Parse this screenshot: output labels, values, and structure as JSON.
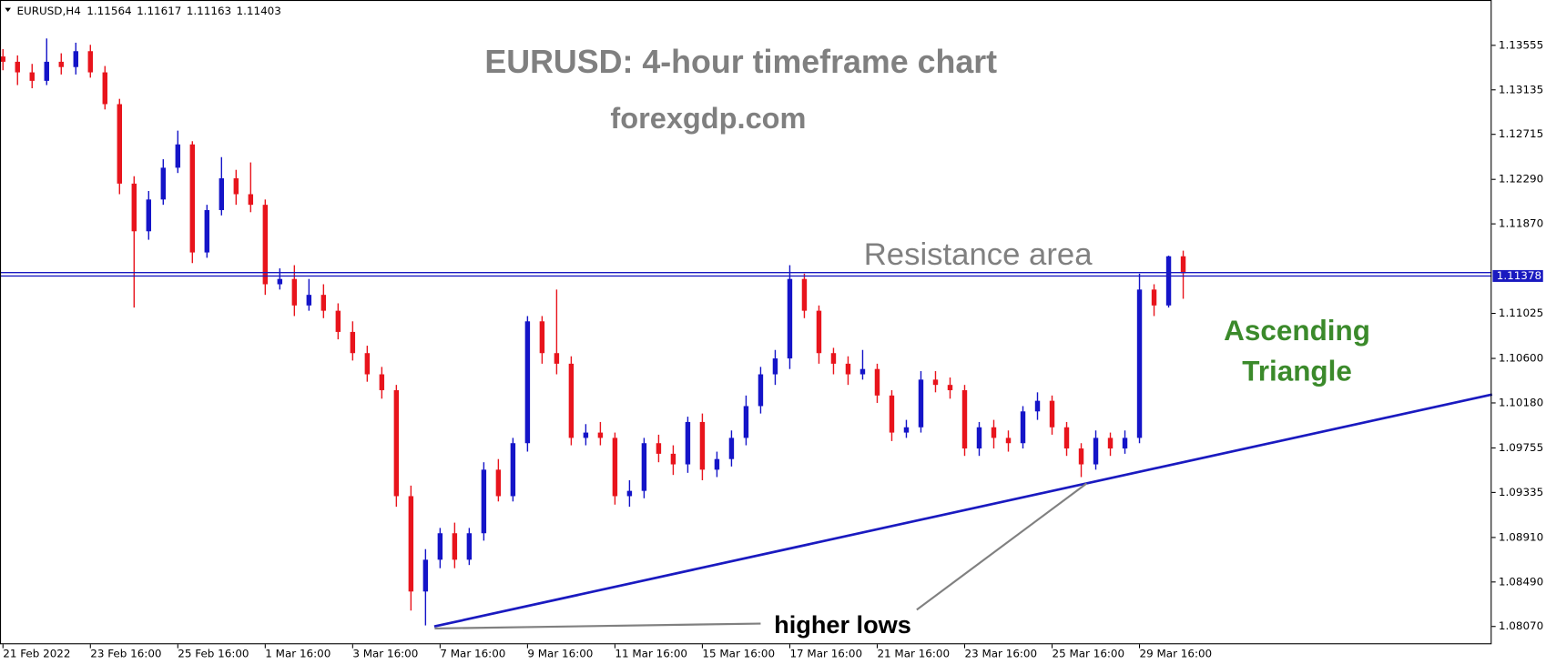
{
  "chart_data": {
    "type": "candlestick",
    "symbol": "EURUSD,H4",
    "title": "EURUSD: 4-hour timeframe chart",
    "subtitle": "forexgdp.com",
    "resistance_label": "Resistance area",
    "pattern_label": [
      "Ascending",
      "Triangle"
    ],
    "trendline_label": "higher lows",
    "up_color": "#1414c8",
    "down_color": "#e8141c",
    "line_color": "#1a1ac0",
    "categories": [
      "21 Feb 2022",
      null,
      null,
      null,
      null,
      null,
      "23 Feb 16:00",
      null,
      null,
      null,
      null,
      null,
      "25 Feb 16:00",
      null,
      null,
      null,
      null,
      null,
      "1 Mar 16:00",
      null,
      null,
      null,
      null,
      null,
      "3 Mar 16:00",
      null,
      null,
      null,
      null,
      null,
      "7 Mar 16:00",
      null,
      null,
      null,
      null,
      null,
      "9 Mar 16:00",
      null,
      null,
      null,
      null,
      null,
      "11 Mar 16:00",
      null,
      null,
      null,
      null,
      null,
      "15 Mar 16:00",
      null,
      null,
      null,
      null,
      null,
      "17 Mar 16:00",
      null,
      null,
      null,
      null,
      null,
      "21 Mar 16:00",
      null,
      null,
      null,
      null,
      null,
      "23 Mar 16:00",
      null,
      null,
      null,
      null,
      null,
      "25 Mar 16:00",
      null,
      null,
      null,
      null,
      null,
      "29 Mar 16:00",
      null,
      null,
      null
    ],
    "open": [
      1.1345,
      1.134,
      1.133,
      1.1322,
      1.134,
      1.1335,
      1.135,
      1.133,
      1.13,
      1.1225,
      1.118,
      1.121,
      1.124,
      1.1262,
      1.116,
      1.12,
      1.123,
      1.1215,
      1.1205,
      1.113,
      1.1135,
      1.111,
      1.112,
      1.1105,
      1.1085,
      1.1065,
      1.1045,
      1.103,
      1.093,
      1.084,
      1.087,
      1.0895,
      1.087,
      1.0895,
      1.0955,
      1.093,
      1.098,
      1.1095,
      1.1065,
      1.1055,
      1.0985,
      1.099,
      1.0985,
      1.093,
      1.0935,
      1.098,
      1.097,
      1.096,
      1.1,
      1.0955,
      1.0965,
      1.0985,
      1.1015,
      1.1045,
      1.106,
      1.1135,
      1.1105,
      1.1065,
      1.1055,
      1.1045,
      1.105,
      1.1025,
      1.099,
      1.0995,
      1.104,
      1.1035,
      1.103,
      1.0975,
      1.0995,
      1.0985,
      1.098,
      1.101,
      1.102,
      1.0995,
      1.0975,
      1.096,
      1.0985,
      1.0975,
      1.0985,
      1.1125,
      1.111,
      1.11564
    ],
    "high": [
      1.1352,
      1.1346,
      1.1338,
      1.1362,
      1.1348,
      1.1358,
      1.1356,
      1.1336,
      1.1305,
      1.1232,
      1.1218,
      1.1248,
      1.1275,
      1.1265,
      1.1205,
      1.125,
      1.1238,
      1.1245,
      1.121,
      1.1145,
      1.1148,
      1.1135,
      1.113,
      1.1112,
      1.1095,
      1.1072,
      1.1052,
      1.1035,
      1.094,
      1.088,
      1.09,
      1.0905,
      1.09,
      1.0962,
      1.0965,
      1.0985,
      1.11,
      1.11,
      1.1125,
      1.1062,
      1.0998,
      1.1,
      1.099,
      1.0945,
      1.0985,
      1.0988,
      1.0978,
      1.1005,
      1.1008,
      1.0972,
      1.0992,
      1.1025,
      1.1052,
      1.1068,
      1.1148,
      1.114,
      1.111,
      1.107,
      1.1062,
      1.1068,
      1.1055,
      1.103,
      1.1002,
      1.1048,
      1.1048,
      1.1042,
      1.1035,
      1.1,
      1.1002,
      1.0992,
      1.1015,
      1.1028,
      1.1025,
      1.1,
      1.098,
      1.0992,
      1.099,
      1.0992,
      1.114,
      1.113,
      1.1157,
      1.11617
    ],
    "low": [
      1.1332,
      1.1318,
      1.1315,
      1.1318,
      1.1328,
      1.1328,
      1.1325,
      1.1295,
      1.1215,
      1.1108,
      1.1172,
      1.1205,
      1.1235,
      1.115,
      1.1155,
      1.1195,
      1.1205,
      1.1198,
      1.112,
      1.1125,
      1.11,
      1.1105,
      1.1098,
      1.1078,
      1.1058,
      1.1038,
      1.1022,
      1.092,
      1.0822,
      1.0808,
      1.0862,
      1.0862,
      1.0865,
      1.0888,
      1.0925,
      1.0925,
      1.0972,
      1.1055,
      1.1045,
      1.0978,
      1.0978,
      1.0978,
      1.0922,
      1.092,
      1.0928,
      1.0962,
      1.095,
      1.0952,
      1.0945,
      1.0948,
      1.0958,
      1.0978,
      1.1008,
      1.1035,
      1.105,
      1.1098,
      1.1055,
      1.1045,
      1.1035,
      1.104,
      1.1018,
      1.0982,
      1.0985,
      1.099,
      1.1028,
      1.1022,
      1.0968,
      1.0968,
      1.0975,
      1.0972,
      1.0975,
      1.1002,
      1.0988,
      1.0968,
      1.0948,
      1.0955,
      1.0968,
      1.097,
      1.098,
      1.11,
      1.1108,
      1.11163
    ],
    "close": [
      1.134,
      1.133,
      1.1322,
      1.134,
      1.1335,
      1.135,
      1.133,
      1.13,
      1.1225,
      1.118,
      1.121,
      1.124,
      1.1262,
      1.116,
      1.12,
      1.123,
      1.1215,
      1.1205,
      1.113,
      1.1135,
      1.111,
      1.112,
      1.1105,
      1.1085,
      1.1065,
      1.1045,
      1.103,
      1.093,
      1.084,
      1.087,
      1.0895,
      1.087,
      1.0895,
      1.0955,
      1.093,
      1.098,
      1.1095,
      1.1065,
      1.1055,
      1.0985,
      1.099,
      1.0985,
      1.093,
      1.0935,
      1.098,
      1.097,
      1.096,
      1.1,
      1.0955,
      1.0965,
      1.0985,
      1.1015,
      1.1045,
      1.106,
      1.1135,
      1.1105,
      1.1065,
      1.1055,
      1.1045,
      1.105,
      1.1025,
      1.099,
      1.0995,
      1.104,
      1.1035,
      1.103,
      1.0975,
      1.0995,
      1.0985,
      1.098,
      1.101,
      1.102,
      1.0995,
      1.0975,
      1.096,
      1.0985,
      1.0975,
      1.0985,
      1.1125,
      1.111,
      1.11564,
      1.11403
    ],
    "resistance_levels": [
      1.1141,
      1.11378
    ],
    "resistance_price_label": "1.11378",
    "trendline": {
      "x": [
        29.6,
        102.2
      ],
      "y": [
        1.0807,
        1.1026
      ]
    },
    "ylim": [
      1.07902,
      1.13983
    ],
    "yticks": [
      1.13555,
      1.13135,
      1.12715,
      {
        "value": 1.1229,
        "label": "1.12290"
      },
      {
        "value": 1.1187,
        "label": "1.11870"
      },
      1.11025,
      {
        "value": 1.106,
        "label": "1.10600"
      },
      {
        "value": 1.1018,
        "label": "1.10180"
      },
      1.09755,
      1.09335,
      {
        "value": 1.0891,
        "label": "1.08910"
      },
      {
        "value": 1.0849,
        "label": "1.08490"
      },
      {
        "value": 1.0807,
        "label": "1.08070"
      }
    ]
  }
}
